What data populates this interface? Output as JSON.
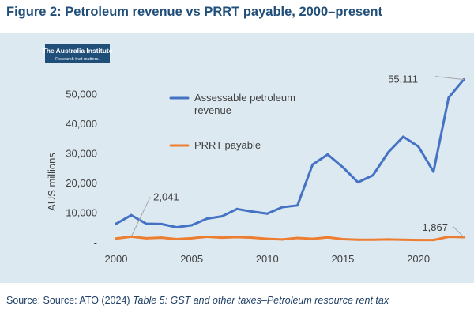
{
  "figure": {
    "title": "Figure 2: Petroleum revenue vs PRRT payable, 2000–present",
    "source_prefix": "Source: Source: ATO (2024) ",
    "source_italic": "Table 5: GST and other taxes–Petroleum resource rent tax"
  },
  "logo": {
    "name": "The Australia Institute",
    "tagline": "Research that matters."
  },
  "chart_data": {
    "type": "line",
    "title": "",
    "xlabel": "",
    "ylabel": "AUS millions",
    "xlim": [
      2000,
      2023
    ],
    "ylim": [
      0,
      55000
    ],
    "grid": false,
    "legend": "inline",
    "x_ticks": [
      2000,
      2005,
      2010,
      2015,
      2020
    ],
    "y_ticks": [
      0,
      10000,
      20000,
      30000,
      40000,
      50000
    ],
    "y_tick_labels": [
      "-",
      "10,000",
      "20,000",
      "30,000",
      "40,000",
      "50,000"
    ],
    "x": [
      2000,
      2001,
      2002,
      2003,
      2004,
      2005,
      2006,
      2007,
      2008,
      2009,
      2010,
      2011,
      2012,
      2013,
      2014,
      2015,
      2016,
      2017,
      2018,
      2019,
      2020,
      2021,
      2022,
      2023
    ],
    "series": [
      {
        "name": "Assessable petroleum revenue",
        "color": "#4472c4",
        "values": [
          6400,
          9300,
          6400,
          6300,
          5200,
          5900,
          8100,
          8900,
          11400,
          10500,
          9800,
          12000,
          12600,
          26400,
          29800,
          25500,
          20400,
          22800,
          30500,
          35800,
          32500,
          24000,
          49000,
          55111
        ]
      },
      {
        "name": "PRRT payable",
        "color": "#ed7d31",
        "values": [
          1400,
          2041,
          1500,
          1700,
          1200,
          1500,
          2000,
          1700,
          1900,
          1700,
          1300,
          1100,
          1600,
          1300,
          1800,
          1200,
          1000,
          1000,
          1100,
          1000,
          900,
          900,
          2000,
          1867
        ]
      }
    ],
    "annotations": [
      {
        "text": "55,111",
        "x": 2023,
        "y": 55111,
        "series": 0
      },
      {
        "text": "2,041",
        "x": 2001,
        "y": 2041,
        "series": 1
      },
      {
        "text": "1,867",
        "x": 2023,
        "y": 1867,
        "series": 1
      }
    ]
  }
}
